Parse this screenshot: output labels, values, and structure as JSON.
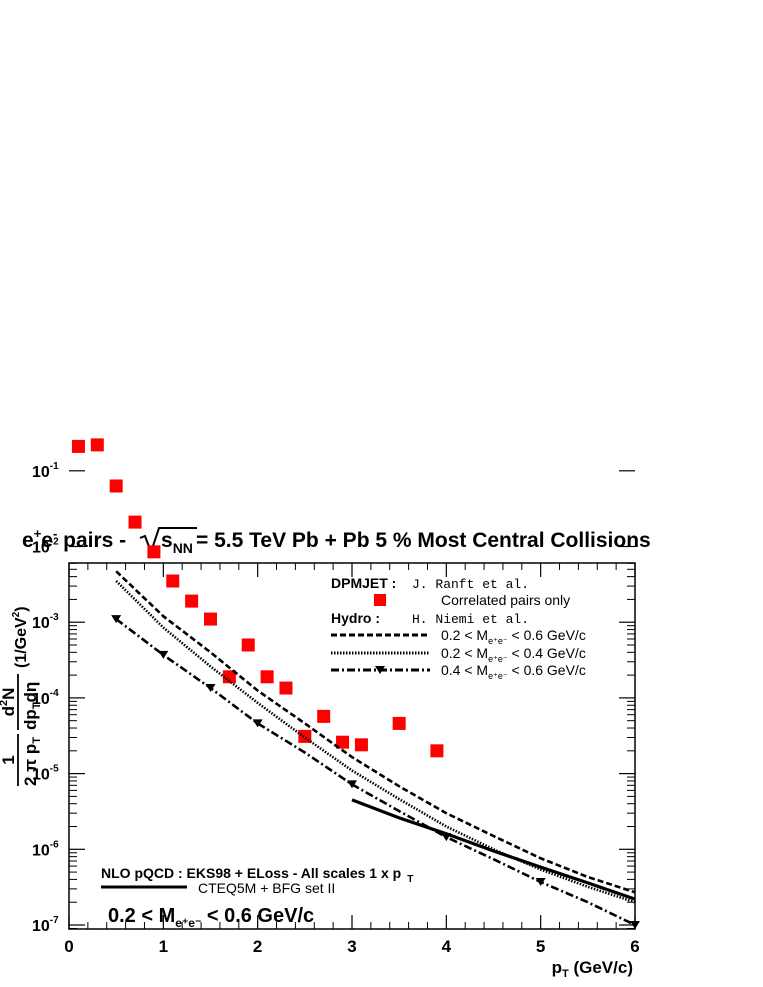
{
  "chart_data": {
    "type": "scatter",
    "title": {
      "main": "e",
      "sup1": "+",
      "mid": "e",
      "sup2": "-",
      "pairs": " pairs  - ",
      "sqrt_s": "s",
      "sqrt_sub": "NN",
      "rest": " = 5.5 TeV Pb + Pb 5 % Most Central Collisions"
    },
    "xlabel": {
      "main": "p",
      "sub": "T",
      "unit": " (GeV/c)"
    },
    "ylabel": {
      "frac1_num": "1",
      "frac1_den_a": "2 π p",
      "frac1_den_sub": "T",
      "frac2_num_a": "d",
      "frac2_num_sup": "2",
      "frac2_num_b": "N",
      "frac2_den_a": "dp",
      "frac2_den_sub": "T",
      "frac2_den_b": "dη",
      "unit_a": "(1/GeV",
      "unit_sup": "2",
      "unit_b": ")"
    },
    "x_scale": "linear",
    "y_scale": "log",
    "xlim": [
      0,
      6
    ],
    "ylim": [
      5e-08,
      0.4
    ],
    "x_ticks": [
      "0",
      "1",
      "2",
      "3",
      "4",
      "5",
      "6"
    ],
    "y_ticks": [
      {
        "base": "10",
        "exp": "-7",
        "value": 1e-07
      },
      {
        "base": "10",
        "exp": "-6",
        "value": 1e-06
      },
      {
        "base": "10",
        "exp": "-5",
        "value": 1e-05
      },
      {
        "base": "10",
        "exp": "-4",
        "value": 0.0001
      },
      {
        "base": "10",
        "exp": "-3",
        "value": 0.001
      },
      {
        "base": "10",
        "exp": "-2",
        "value": 0.01
      },
      {
        "base": "10",
        "exp": "-1",
        "value": 0.1
      }
    ],
    "grid": false,
    "legend_position": "top-right",
    "legend": {
      "dpmjet_label": "DPMJET :",
      "dpmjet_author": "J. Ranft et al.",
      "dpmjet_entry": "Correlated pairs only",
      "hydro_label": "Hydro :",
      "hydro_author": "H. Niemi et al.",
      "entries": [
        {
          "a": "0.2 < M",
          "sub": "e⁺e⁻",
          "b": " < 0.6 GeV/c"
        },
        {
          "a": "0.2 < M",
          "sub": "e⁺e⁻",
          "b": " < 0.4 GeV/c"
        },
        {
          "a": "0.4 < M",
          "sub": "e⁺e⁻",
          "b": " < 0.6 GeV/c"
        }
      ]
    },
    "annotations": {
      "pqcd_a": "NLO pQCD : EKS98 + ELoss - All scales 1 x p",
      "pqcd_sub": "T",
      "pqcd_entry": "CTEQ5M + BFG set II",
      "mass_a": "0.2 < M",
      "mass_sub": "e⁺e⁻",
      "mass_b": " < 0.6 GeV/c"
    },
    "series": [
      {
        "key": "dpmjet",
        "style": "square-markers",
        "color": "#ff0000",
        "x": [
          0.1,
          0.3,
          0.5,
          0.7,
          0.9,
          1.1,
          1.3,
          1.5,
          1.7,
          1.9,
          2.1,
          2.3,
          2.5,
          2.7,
          2.9,
          3.1,
          3.5,
          3.9
        ],
        "y": [
          0.21,
          0.22,
          0.063,
          0.021,
          0.0085,
          0.0035,
          0.0019,
          0.0011,
          0.00019,
          0.0005,
          0.00019,
          0.000135,
          3.1e-05,
          5.7e-05,
          2.6e-05,
          2.4e-05,
          4.6e-05,
          2e-05
        ]
      },
      {
        "key": "hydro_02_06",
        "style": "dashed",
        "color": "#000000",
        "x": [
          0.5,
          1.0,
          1.5,
          2.0,
          2.5,
          3.0,
          3.5,
          4.0,
          4.5,
          5.0,
          5.5,
          6.0
        ],
        "y": [
          0.0047,
          0.0012,
          0.0004,
          0.000125,
          4.6e-05,
          1.65e-05,
          6.8e-06,
          3e-06,
          1.5e-06,
          7.6e-07,
          4.3e-07,
          2.7e-07
        ]
      },
      {
        "key": "hydro_02_04",
        "style": "dotted",
        "color": "#000000",
        "x": [
          0.5,
          1.0,
          1.5,
          2.0,
          2.5,
          3.0,
          3.5,
          4.0,
          4.5,
          5.0,
          5.5,
          6.0
        ],
        "y": [
          0.0035,
          0.00085,
          0.00026,
          8.6e-05,
          3e-05,
          1.1e-05,
          4.6e-06,
          2e-06,
          1e-06,
          5.4e-07,
          3.2e-07,
          2e-07
        ]
      },
      {
        "key": "hydro_04_06",
        "style": "dash-dot-triangles",
        "color": "#000000",
        "x": [
          0.5,
          1.0,
          1.5,
          2.0,
          2.5,
          3.0,
          3.5,
          4.0,
          4.5,
          5.0,
          5.5,
          6.0
        ],
        "y": [
          0.0011,
          0.00037,
          0.000135,
          4.6e-05,
          1.9e-05,
          7.2e-06,
          3.2e-06,
          1.45e-06,
          7.4e-07,
          3.7e-07,
          2e-07,
          1e-07
        ],
        "marker_x": [
          0.5,
          1.0,
          1.5,
          2.0,
          3.0,
          4.0,
          5.0,
          6.0
        ]
      },
      {
        "key": "nlo_pqcd",
        "style": "solid",
        "color": "#000000",
        "x": [
          3.0,
          3.5,
          4.0,
          4.5,
          5.0,
          5.5,
          6.0
        ],
        "y": [
          4.5e-06,
          2.6e-06,
          1.6e-06,
          9.5e-07,
          5.8e-07,
          3.6e-07,
          2.2e-07
        ]
      }
    ]
  }
}
